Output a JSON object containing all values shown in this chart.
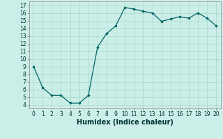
{
  "x": [
    0,
    1,
    2,
    3,
    4,
    5,
    6,
    7,
    8,
    9,
    10,
    11,
    12,
    13,
    14,
    15,
    16,
    17,
    18,
    19,
    20
  ],
  "y": [
    9.0,
    6.2,
    5.2,
    5.2,
    4.2,
    4.2,
    5.2,
    11.5,
    13.3,
    14.3,
    16.7,
    16.5,
    16.2,
    16.0,
    14.9,
    15.2,
    15.5,
    15.3,
    16.0,
    15.3,
    14.3
  ],
  "line_color": "#006666",
  "marker": "D",
  "marker_size": 1.8,
  "bg_color": "#cceee8",
  "grid_color": "#aaddcc",
  "xlabel": "Humidex (Indice chaleur)",
  "xlabel_fontsize": 7,
  "tick_fontsize": 5.5,
  "xlim": [
    -0.5,
    20.5
  ],
  "ylim": [
    3.5,
    17.5
  ],
  "yticks": [
    4,
    5,
    6,
    7,
    8,
    9,
    10,
    11,
    12,
    13,
    14,
    15,
    16,
    17
  ],
  "xticks": [
    0,
    1,
    2,
    3,
    4,
    5,
    6,
    7,
    8,
    9,
    10,
    11,
    12,
    13,
    14,
    15,
    16,
    17,
    18,
    19,
    20
  ],
  "linewidth": 0.9,
  "spine_color": "#888888"
}
